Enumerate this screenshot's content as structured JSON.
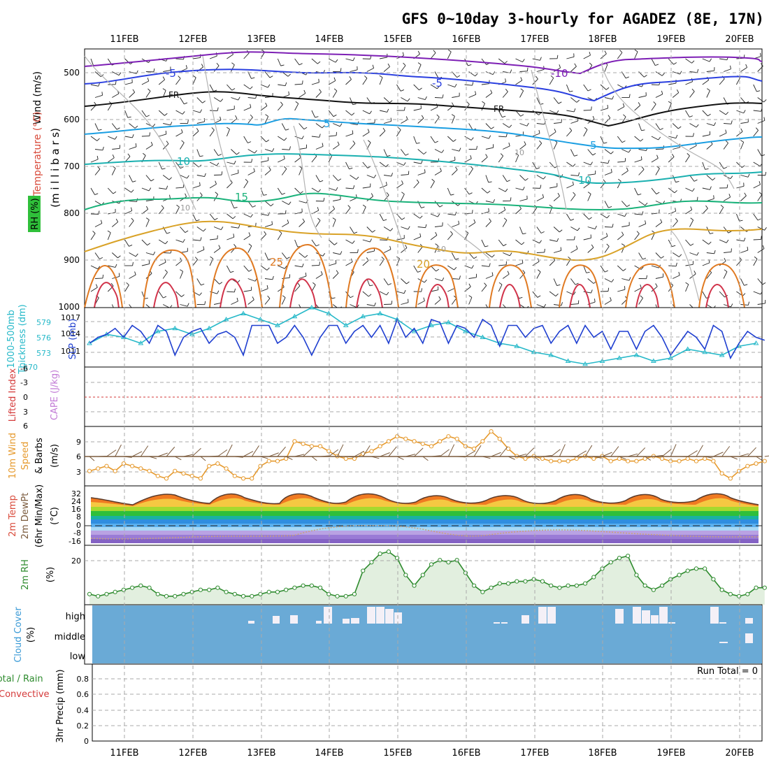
{
  "title": "GFS 0~10day 3-hourly for AGADEZ (8E, 17N)",
  "date_labels": [
    "11FEB",
    "12FEB",
    "13FEB",
    "14FEB",
    "15FEB",
    "16FEB",
    "17FEB",
    "18FEB",
    "19FEB",
    "20FEB"
  ],
  "panels": {
    "upper": {
      "axis_labels": [
        "Wind (m/s)",
        "Temperature (°C)",
        "RH (%)",
        "(m i l l i b a r s)"
      ],
      "ticks": [
        "500",
        "600",
        "700",
        "800",
        "900",
        "1000"
      ],
      "contour_labels": {
        "minus10": "-10",
        "minus5": "-5",
        "fr": "FR",
        "plus5": "5",
        "plus10": "10",
        "plus15": "15",
        "plus20": "20",
        "plus25": "25",
        "rh10": "10"
      }
    },
    "slp": {
      "axis_labels": [
        "1000-500mb",
        "Thickness (dm)",
        "SLP (mb)"
      ],
      "ticks_left": [
        "579",
        "576",
        "573",
        "570"
      ],
      "ticks_right": [
        "1017",
        "1014",
        "1011"
      ]
    },
    "cape": {
      "axis_labels": [
        "Lifted Index",
        "CAPE (J/kg)"
      ],
      "ticks": [
        "-6",
        "-3",
        "0",
        "3",
        "6"
      ]
    },
    "wind10": {
      "axis_labels": [
        "10m Wind",
        "Speed",
        "& Barbs",
        "(m/s)"
      ],
      "ticks": [
        "9",
        "6",
        "3"
      ]
    },
    "temp2m": {
      "axis_labels": [
        "2m Temp",
        "2m DewPt",
        "(6hr Min/Max)",
        "(°C)"
      ],
      "ticks": [
        "32",
        "24",
        "16",
        "8",
        "0",
        "-8",
        "-16"
      ]
    },
    "rh2m": {
      "axis_labels": [
        "2m RH",
        "(%)"
      ],
      "ticks": [
        "20"
      ]
    },
    "cloud": {
      "axis_labels": [
        "Cloud Cover",
        "(%)"
      ],
      "ticks": [
        "high",
        "middle",
        "low"
      ]
    },
    "precip": {
      "axis_labels": [
        "Total / Rain",
        "Convective",
        "3hr Precip (mm)"
      ],
      "ticks": [
        "0.8",
        "0.6",
        "0.4",
        "0.2",
        "0"
      ],
      "run_total": "Run Total = 0"
    }
  },
  "colors": {
    "grid": "#a9a9a9",
    "slp": "#1f3fd0",
    "thickness": "#27b9c9",
    "wind_speed": "#e69a2e",
    "wind_barb": "#7a5a3c",
    "rh_line": "#2e8b2e",
    "rh_fill": "#e2efdf",
    "cloud_bg": "#6aaad6",
    "cloud_white": "#f4f0f7",
    "lifted_index": "#d43a3a",
    "cape": "#c27bd6"
  },
  "chart_data": [
    {
      "type": "line",
      "title": "1000-500mb Thickness (dm) and SLP (mb)",
      "ylim_thickness": [
        570,
        580
      ],
      "ylim_slp": [
        1009,
        1019
      ],
      "series": [
        {
          "name": "SLP (mb)",
          "x_day_offset": [
            0,
            0.125,
            0.25,
            0.375,
            0.5,
            0.625,
            0.75,
            0.875,
            1,
            1.125,
            1.25,
            1.375,
            1.5,
            1.625,
            1.75,
            1.875,
            2,
            2.125,
            2.25,
            2.375,
            2.5,
            2.625,
            2.75,
            2.875,
            3,
            3.125,
            3.25,
            3.375,
            3.5,
            3.625,
            3.75,
            3.875,
            4,
            4.125,
            4.25,
            4.375,
            4.5,
            4.625,
            4.75,
            4.875,
            5,
            5.125,
            5.25,
            5.375,
            5.5,
            5.625,
            5.75,
            5.875,
            6,
            6.125,
            6.25,
            6.375,
            6.5,
            6.625,
            6.75,
            6.875,
            7,
            7.125,
            7.25,
            7.375,
            7.5,
            7.625,
            7.75,
            7.875,
            8,
            8.125,
            8.25,
            8.375,
            8.5,
            8.625,
            8.75,
            8.875,
            9,
            9.125,
            9.25,
            9.375,
            9.5,
            9.625,
            9.75,
            9.875
          ],
          "values": [
            1013,
            1014,
            1014.5,
            1015.5,
            1014,
            1016,
            1015,
            1013,
            1016,
            1015,
            1011,
            1014,
            1015,
            1015.5,
            1013,
            1014.5,
            1015,
            1014,
            1011,
            1016,
            1016,
            1016,
            1013,
            1014,
            1016,
            1014,
            1011,
            1014,
            1016,
            1016,
            1013,
            1015,
            1016,
            1014,
            1016,
            1013,
            1017,
            1014,
            1015.5,
            1013,
            1017,
            1016.5,
            1013,
            1016,
            1015.5,
            1014,
            1017,
            1016,
            1012.5,
            1016,
            1016,
            1014,
            1015.5,
            1016,
            1013,
            1015,
            1016,
            1013,
            1016,
            1014,
            1015,
            1012,
            1015,
            1015,
            1012,
            1015,
            1016,
            1014,
            1011,
            1013,
            1015,
            1014,
            1012,
            1016,
            1015,
            1010.5,
            1013,
            1015,
            1014,
            1013.5
          ]
        },
        {
          "name": "1000-500mb Thickness (dm)",
          "x_day_offset": [
            0,
            0.25,
            0.5,
            0.75,
            1,
            1.25,
            1.5,
            1.75,
            2,
            2.25,
            2.5,
            2.75,
            3,
            3.25,
            3.5,
            3.75,
            4,
            4.25,
            4.5,
            4.75,
            5,
            5.25,
            5.5,
            5.75,
            6,
            6.25,
            6.5,
            6.75,
            7,
            7.25,
            7.5,
            7.75,
            8,
            8.25,
            8.5,
            8.75,
            9,
            9.25,
            9.5,
            9.75
          ],
          "values": [
            574,
            575.5,
            575,
            574,
            576,
            576.5,
            575.5,
            576.5,
            578,
            579,
            578,
            577,
            578.5,
            580,
            579,
            577,
            578.5,
            579,
            578,
            576,
            577,
            577.5,
            576,
            575,
            574,
            573.5,
            572.5,
            572,
            571,
            570.5,
            571,
            571.5,
            572,
            571,
            571.5,
            573,
            572.5,
            572,
            573.5,
            574
          ]
        }
      ]
    },
    {
      "type": "line",
      "title": "10m Wind Speed (m/s)",
      "ylim": [
        0,
        12
      ],
      "series": [
        {
          "name": "10m Wind Speed",
          "x_day_offset": [
            0,
            0.125,
            0.25,
            0.375,
            0.5,
            0.625,
            0.75,
            0.875,
            1,
            1.125,
            1.25,
            1.375,
            1.5,
            1.625,
            1.75,
            1.875,
            2,
            2.125,
            2.25,
            2.375,
            2.5,
            2.625,
            2.75,
            2.875,
            3,
            3.125,
            3.25,
            3.375,
            3.5,
            3.625,
            3.75,
            3.875,
            4,
            4.125,
            4.25,
            4.375,
            4.5,
            4.625,
            4.75,
            4.875,
            5,
            5.125,
            5.25,
            5.375,
            5.5,
            5.625,
            5.75,
            5.875,
            6,
            6.125,
            6.25,
            6.375,
            6.5,
            6.625,
            6.75,
            6.875,
            7,
            7.125,
            7.25,
            7.375,
            7.5,
            7.625,
            7.75,
            7.875,
            8,
            8.125,
            8.25,
            8.375,
            8.5,
            8.625,
            8.75,
            8.875,
            9,
            9.125,
            9.25,
            9.375,
            9.5,
            9.625,
            9.75,
            9.875
          ],
          "values": [
            3,
            3.5,
            4,
            3,
            4.5,
            4,
            3.5,
            3,
            2,
            1.5,
            3,
            2.5,
            2,
            1.5,
            4,
            4.5,
            3.5,
            2,
            1.5,
            1.5,
            4,
            5,
            5,
            5.5,
            9,
            8.5,
            8,
            8,
            7,
            6,
            5.5,
            5.5,
            6.5,
            7,
            8,
            9,
            10,
            9.5,
            9,
            8.5,
            8,
            9,
            10,
            9.5,
            8,
            7.5,
            9,
            11,
            9.5,
            7.5,
            6,
            5.5,
            6,
            5.5,
            5,
            5,
            5,
            5.5,
            6,
            5.5,
            6,
            5,
            5.5,
            5,
            5,
            5.5,
            6,
            5.5,
            5,
            5,
            5.5,
            5,
            5.5,
            5,
            2.5,
            1.5,
            3,
            4,
            4.5,
            5
          ]
        }
      ]
    },
    {
      "type": "area",
      "title": "2m RH (%)",
      "ylim": [
        0,
        28
      ],
      "series": [
        {
          "name": "2m RH",
          "x_day_offset": [
            0,
            0.125,
            0.25,
            0.375,
            0.5,
            0.625,
            0.75,
            0.875,
            1,
            1.125,
            1.25,
            1.375,
            1.5,
            1.625,
            1.75,
            1.875,
            2,
            2.125,
            2.25,
            2.375,
            2.5,
            2.625,
            2.75,
            2.875,
            3,
            3.125,
            3.25,
            3.375,
            3.5,
            3.625,
            3.75,
            3.875,
            4,
            4.125,
            4.25,
            4.375,
            4.5,
            4.625,
            4.75,
            4.875,
            5,
            5.125,
            5.25,
            5.375,
            5.5,
            5.625,
            5.75,
            5.875,
            6,
            6.125,
            6.25,
            6.375,
            6.5,
            6.625,
            6.75,
            6.875,
            7,
            7.125,
            7.25,
            7.375,
            7.5,
            7.625,
            7.75,
            7.875,
            8,
            8.125,
            8.25,
            8.375,
            8.5,
            8.625,
            8.75,
            8.875,
            9,
            9.125,
            9.25,
            9.375,
            9.5,
            9.625,
            9.75,
            9.875
          ],
          "values": [
            5,
            4,
            5,
            6,
            7,
            8,
            9,
            8,
            5,
            4,
            4,
            5,
            6,
            7,
            7,
            8,
            6,
            5,
            4,
            4,
            5,
            6,
            6,
            7,
            8,
            9,
            9,
            8,
            5,
            4,
            4,
            5,
            16,
            20,
            24,
            25,
            22,
            14,
            9,
            14,
            19,
            21,
            20,
            21,
            15,
            9,
            6,
            8,
            10,
            10,
            11,
            11,
            12,
            11,
            9,
            8,
            9,
            9,
            10,
            13,
            17,
            20,
            22,
            23,
            14,
            9,
            7,
            9,
            12,
            14,
            16,
            17,
            17,
            12,
            7,
            5,
            4,
            5,
            8,
            8
          ]
        }
      ]
    },
    {
      "type": "bar",
      "title": "Cloud Cover (%)",
      "categories": [
        "high",
        "middle",
        "low"
      ],
      "note": "high-level cloud bars near 14FEB-15FEB, 17FEB, 18FEB-19FEB and 19FEB-20FEB"
    },
    {
      "type": "bar",
      "title": "3hr Precip (mm)",
      "ylim": [
        0,
        1
      ],
      "values": []
    }
  ]
}
